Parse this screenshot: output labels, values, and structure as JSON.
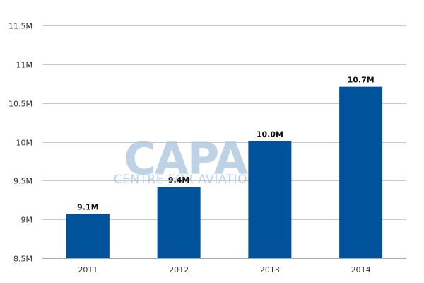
{
  "chart_data": {
    "type": "bar",
    "categories": [
      "2011",
      "2012",
      "2013",
      "2014"
    ],
    "values": [
      9.07,
      9.42,
      10.01,
      10.71
    ],
    "data_labels": [
      "9.1M",
      "9.4M",
      "10.0M",
      "10.7M"
    ],
    "title": "",
    "xlabel": "",
    "ylabel": "",
    "ylim": [
      8.5,
      11.5
    ],
    "yticks": [
      8.5,
      9,
      9.5,
      10,
      10.5,
      11,
      11.5
    ],
    "ytick_labels": [
      "8.5M",
      "9M",
      "9.5M",
      "10M",
      "10.5M",
      "11M",
      "11.5M"
    ],
    "grid": true,
    "legend": "none",
    "bar_color": "#00529b",
    "grid_color": "#c8c8c8"
  },
  "watermark": {
    "brand": "CAPA",
    "tagline": "CENTRE FOR AVIATION",
    "color": "#a9c4de"
  }
}
